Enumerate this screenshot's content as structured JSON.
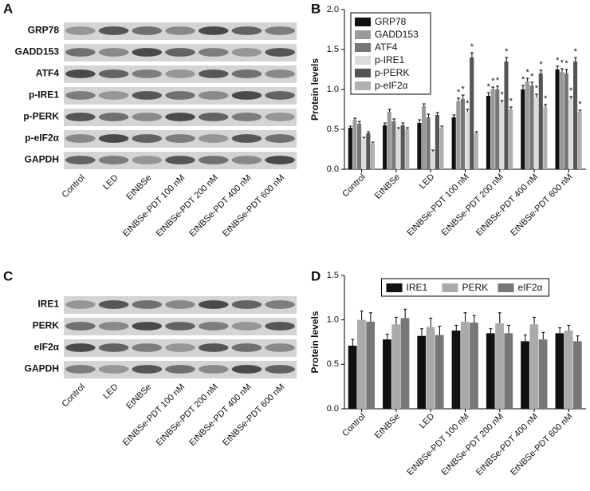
{
  "panels": [
    {
      "label": "A",
      "rows": [
        "GRP78",
        "GADD153",
        "ATF4",
        "p-IRE1",
        "p-PERK",
        "p-eIF2α",
        "GAPDH"
      ],
      "lanes": [
        "Control",
        "LED",
        "EtNBSe",
        "EtNBSe-PDT 100 nM",
        "EtNBSe-PDT 200 nM",
        "EtNBSe-PDT 400 nM",
        "EtNBSe-PDT 600 nM"
      ]
    },
    {
      "label": "C",
      "rows": [
        "IRE1",
        "PERK",
        "eIF2α",
        "GAPDH"
      ],
      "lanes": [
        "Control",
        "LED",
        "EtNBSe",
        "EtNBSe-PDT 100 nM",
        "EtNBSe-PDT 200 nM",
        "EtNBSe-PDT 400 nM",
        "EtNBSe-PDT 600 nM"
      ]
    }
  ],
  "chart_data": [
    {
      "type": "bar",
      "label": "B",
      "ylabel": "Protein levels",
      "legend": "upper left",
      "categories": [
        "Control",
        "EtNBSe",
        "LED",
        "EtNBSe-PDT 100 nM",
        "EtNBSe-PDT 200 nM",
        "EtNBSe-PDT 400 nM",
        "EtNBSe-PDT 600 nM"
      ],
      "ylim": [
        0,
        2
      ],
      "yticks": [
        {
          "value": 0,
          "label": "0.0"
        },
        0.5,
        {
          "value": 1,
          "label": "1.0"
        },
        1.5,
        {
          "value": 2,
          "label": "2.0"
        }
      ],
      "series": [
        {
          "name": "GRP78",
          "color": "#111111",
          "values": [
            0.52,
            0.55,
            0.58,
            0.65,
            0.92,
            1.0,
            1.25
          ],
          "errors": [
            0.02,
            0.03,
            0.04,
            0.03,
            0.04,
            0.05,
            0.04
          ],
          "significance": [
            null,
            null,
            null,
            null,
            "*",
            "*",
            "*"
          ]
        },
        {
          "name": "GADD153",
          "color": "#9a9a9a",
          "values": [
            0.62,
            0.72,
            0.79,
            0.85,
            1.0,
            1.1,
            1.22
          ],
          "errors": [
            0.02,
            0.03,
            0.03,
            0.04,
            0.03,
            0.04,
            0.04
          ],
          "significance": [
            null,
            null,
            null,
            "*",
            "*",
            "*",
            "*"
          ]
        },
        {
          "name": "ATF4",
          "color": "#767676",
          "values": [
            0.57,
            0.6,
            0.65,
            0.88,
            1.0,
            1.05,
            1.2
          ],
          "errors": [
            0.03,
            0.03,
            0.04,
            0.05,
            0.04,
            0.04,
            0.05
          ],
          "significance": [
            null,
            null,
            null,
            "*",
            "*",
            "*",
            "*"
          ]
        },
        {
          "name": "p-IRE1",
          "color": "#dcdcdc",
          "values": [
            0.38,
            0.5,
            0.22,
            0.72,
            0.83,
            0.9,
            0.88
          ],
          "errors": [
            0.02,
            0.02,
            0.02,
            0.03,
            0.03,
            0.04,
            0.03
          ],
          "significance": [
            null,
            null,
            null,
            "*",
            "*",
            "*",
            "*"
          ]
        },
        {
          "name": "p-PERK",
          "color": "#555555",
          "values": [
            0.45,
            0.55,
            0.68,
            1.4,
            1.35,
            1.2,
            1.35
          ],
          "errors": [
            0.02,
            0.03,
            0.03,
            0.06,
            0.05,
            0.04,
            0.05
          ],
          "significance": [
            null,
            null,
            null,
            "*",
            "*",
            "*",
            "*"
          ]
        },
        {
          "name": "p-eIF2α",
          "color": "#b0b0b0",
          "values": [
            0.32,
            0.5,
            0.52,
            0.45,
            0.75,
            0.78,
            0.72
          ],
          "errors": [
            0.02,
            0.02,
            0.02,
            0.02,
            0.03,
            0.03,
            0.02
          ],
          "significance": [
            null,
            null,
            null,
            null,
            "*",
            "*",
            "*"
          ]
        }
      ]
    },
    {
      "type": "bar",
      "label": "D",
      "ylabel": "Protein levels",
      "legend": "upper center",
      "categories": [
        "Control",
        "EtNBSe",
        "LED",
        "EtNBSe-PDT 100 nM",
        "EtNBSe-PDT 200 nM",
        "EtNBSe-PDT 400 nM",
        "EtNBSe-PDT 600 nM"
      ],
      "ylim": [
        0,
        1.5
      ],
      "yticks": [
        {
          "value": 0,
          "label": "0.0"
        },
        0.5,
        {
          "value": 1,
          "label": "1.0"
        },
        1.5
      ],
      "series": [
        {
          "name": "IRE1",
          "color": "#111111",
          "values": [
            0.71,
            0.78,
            0.82,
            0.88,
            0.85,
            0.76,
            0.85
          ],
          "errors": [
            0.07,
            0.06,
            0.08,
            0.06,
            0.05,
            0.07,
            0.06
          ]
        },
        {
          "name": "PERK",
          "color": "#aaaaaa",
          "values": [
            1.0,
            0.95,
            0.92,
            0.98,
            0.96,
            0.95,
            0.88
          ],
          "errors": [
            0.1,
            0.08,
            0.1,
            0.1,
            0.12,
            0.08,
            0.06
          ]
        },
        {
          "name": "eIF2α",
          "color": "#777777",
          "values": [
            0.98,
            1.02,
            0.83,
            0.97,
            0.85,
            0.78,
            0.76
          ],
          "errors": [
            0.1,
            0.1,
            0.1,
            0.08,
            0.09,
            0.08,
            0.06
          ]
        }
      ]
    }
  ]
}
